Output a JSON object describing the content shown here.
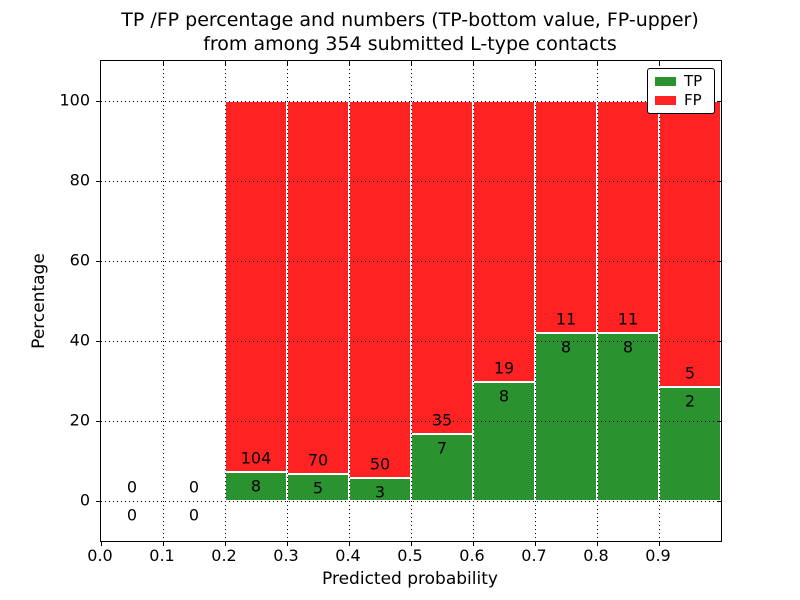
{
  "header": {
    "title_line1": "TP /FP percentage and numbers (TP-bottom value, FP-upper)",
    "title_line2": "from among 354 submitted L-type contacts"
  },
  "axes": {
    "xlabel": "Predicted probability",
    "ylabel": "Percentage",
    "x_tick_labels": [
      "0.0",
      "0.1",
      "0.2",
      "0.3",
      "0.4",
      "0.5",
      "0.6",
      "0.7",
      "0.8",
      "0.9"
    ],
    "y_tick_labels": [
      "0",
      "20",
      "40",
      "60",
      "80",
      "100"
    ]
  },
  "legend": {
    "items": [
      {
        "label": "TP",
        "color": "#2a9330"
      },
      {
        "label": "FP",
        "color": "#fe2222"
      }
    ]
  },
  "colors": {
    "tp": "#2a9330",
    "fp": "#fe2222",
    "grid": "#000000",
    "bar_edge": "#ffffff"
  },
  "chart_data": {
    "type": "bar",
    "stacked": true,
    "normalized_total_pct": 100,
    "title": "TP /FP percentage and numbers (TP-bottom value, FP-upper) from among 354 submitted L-type contacts",
    "xlabel": "Predicted probability",
    "ylabel": "Percentage",
    "xlim": [
      0.0,
      1.0
    ],
    "ylim": [
      -10,
      110
    ],
    "x_ticks": [
      0.0,
      0.1,
      0.2,
      0.3,
      0.4,
      0.5,
      0.6,
      0.7,
      0.8,
      0.9
    ],
    "y_ticks": [
      0,
      20,
      40,
      60,
      80,
      100
    ],
    "grid": "dotted",
    "legend_position": "upper right",
    "series_names": [
      "TP",
      "FP"
    ],
    "total_contacts": 354,
    "bins": [
      {
        "x0": 0.0,
        "x1": 0.1,
        "tp": 0,
        "fp": 0,
        "tp_pct": 0,
        "fp_pct": 0
      },
      {
        "x0": 0.1,
        "x1": 0.2,
        "tp": 0,
        "fp": 0,
        "tp_pct": 0,
        "fp_pct": 0
      },
      {
        "x0": 0.2,
        "x1": 0.3,
        "tp": 8,
        "fp": 104,
        "tp_pct": 7.1,
        "fp_pct": 92.9
      },
      {
        "x0": 0.3,
        "x1": 0.4,
        "tp": 5,
        "fp": 70,
        "tp_pct": 6.7,
        "fp_pct": 93.3
      },
      {
        "x0": 0.4,
        "x1": 0.5,
        "tp": 3,
        "fp": 50,
        "tp_pct": 5.7,
        "fp_pct": 94.3
      },
      {
        "x0": 0.5,
        "x1": 0.6,
        "tp": 7,
        "fp": 35,
        "tp_pct": 16.7,
        "fp_pct": 83.3
      },
      {
        "x0": 0.6,
        "x1": 0.7,
        "tp": 8,
        "fp": 19,
        "tp_pct": 29.6,
        "fp_pct": 70.4
      },
      {
        "x0": 0.7,
        "x1": 0.8,
        "tp": 8,
        "fp": 11,
        "tp_pct": 42.1,
        "fp_pct": 57.9
      },
      {
        "x0": 0.8,
        "x1": 0.9,
        "tp": 8,
        "fp": 11,
        "tp_pct": 42.1,
        "fp_pct": 57.9
      },
      {
        "x0": 0.9,
        "x1": 1.0,
        "tp": 2,
        "fp": 5,
        "tp_pct": 28.6,
        "fp_pct": 71.4
      }
    ]
  }
}
